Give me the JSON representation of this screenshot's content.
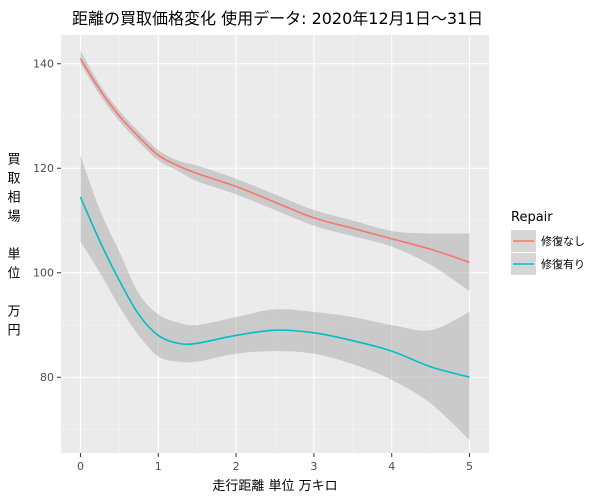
{
  "chart_data": {
    "type": "line",
    "title": "距離の買取価格変化 使用データ: 2020年12月1日～31日",
    "xlabel": "走行距離 単位 万キロ",
    "ylabel": "買取相場　単位　万円",
    "ylabel_chars": [
      "買",
      "取",
      "相",
      "場",
      "",
      "単",
      "位",
      "",
      "万",
      "円"
    ],
    "xlim": [
      -0.25,
      5.25
    ],
    "ylim": [
      65.5,
      145.5
    ],
    "x_ticks": [
      0,
      1,
      2,
      3,
      4,
      5
    ],
    "y_ticks": [
      80,
      100,
      120,
      140
    ],
    "grid": true,
    "legend": {
      "title": "Repair",
      "position": "right"
    },
    "series": [
      {
        "name": "修復なし",
        "color": "#F8766D",
        "x": [
          0,
          0.25,
          0.5,
          0.75,
          1.0,
          1.25,
          1.5,
          2.0,
          2.5,
          3.0,
          3.5,
          4.0,
          4.5,
          5.0
        ],
        "y": [
          141,
          135,
          130,
          126,
          122.5,
          120.5,
          119,
          116.5,
          113.5,
          110.5,
          108.5,
          106.5,
          104.5,
          102
        ],
        "lower": [
          140,
          134,
          129,
          125,
          121.5,
          119.5,
          117.5,
          115,
          112,
          109,
          107,
          105,
          101.5,
          96.5
        ],
        "upper": [
          142.5,
          136,
          131,
          127,
          123.5,
          121.5,
          120.5,
          118,
          115,
          112,
          110,
          108,
          107.5,
          107.5
        ]
      },
      {
        "name": "修復有り",
        "color": "#00BFC4",
        "x": [
          0,
          0.25,
          0.5,
          0.75,
          1.0,
          1.25,
          1.5,
          2.0,
          2.5,
          3.0,
          3.5,
          4.0,
          4.5,
          5.0
        ],
        "y": [
          114.5,
          106,
          98.5,
          92,
          88,
          86.5,
          86.5,
          88,
          89,
          88.5,
          87,
          85,
          82,
          80
        ],
        "lower": [
          106,
          100,
          93.5,
          88,
          84,
          83,
          83,
          84.5,
          85,
          84.5,
          82.5,
          79.5,
          75,
          68
        ],
        "upper": [
          122.5,
          112,
          104,
          96,
          92,
          90.5,
          90,
          91.5,
          93,
          92.5,
          91.5,
          90,
          89,
          92.5
        ]
      }
    ]
  }
}
